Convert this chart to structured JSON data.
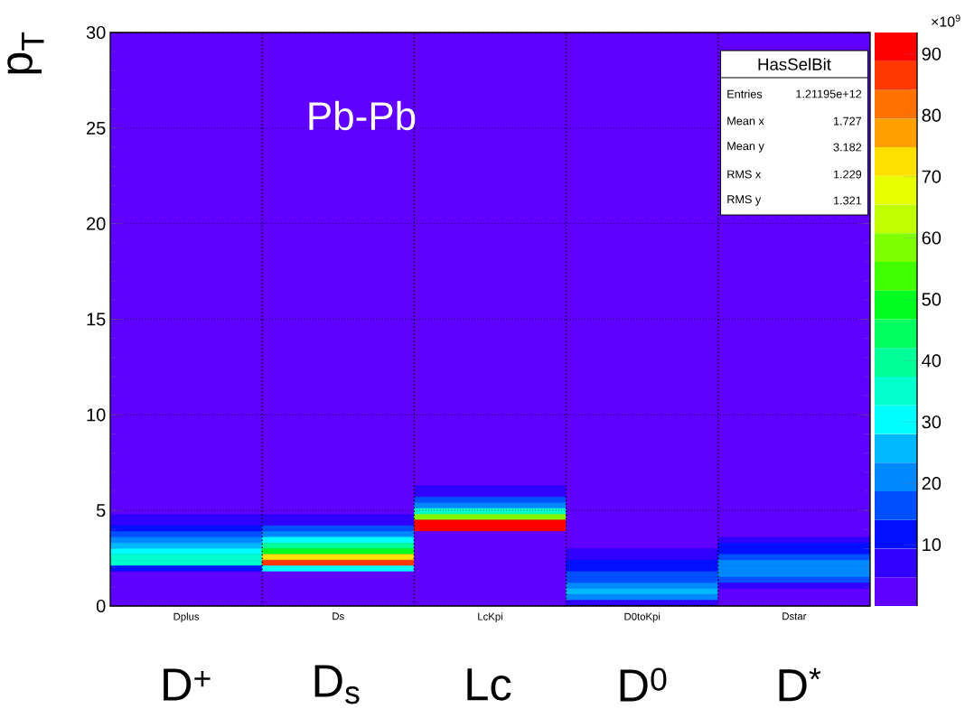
{
  "chart_data": {
    "type": "heatmap",
    "categories": [
      "Dplus",
      "Ds",
      "LcKpi",
      "D0toKpi",
      "Dstar"
    ],
    "ylabel": "p$_{T}$",
    "clabel": "×10$^{9}$",
    "ylim": [
      0,
      30
    ],
    "yticks": [
      0,
      5,
      10,
      15,
      20,
      25,
      30
    ],
    "clim": [
      0,
      93.5
    ],
    "cticks": [
      10,
      20,
      30,
      40,
      50,
      60,
      70,
      80,
      90
    ],
    "grid": true,
    "annotations": [
      "Pb-Pb",
      "HasSelBit",
      "Entries",
      "1.21195e+12",
      "Mean x",
      "1.727",
      "Mean y",
      "3.182",
      "RMS x",
      "1.229",
      "RMS y",
      "1.321",
      "D$^{+}$",
      "D$_{s}$",
      "Lc",
      "D$^{0}$",
      "D$^{*}$"
    ],
    "cells": [
      [
        0,
        0,
        0,
        0,
        0
      ],
      [
        0,
        0,
        0,
        0,
        0
      ],
      [
        0,
        0,
        0,
        0,
        0
      ],
      [
        0,
        0,
        0,
        0,
        null
      ],
      [
        0,
        0,
        0,
        0,
        null
      ],
      [
        0,
        0,
        0,
        0,
        null
      ],
      [
        0,
        0,
        0,
        0,
        null
      ],
      [
        0,
        0,
        0,
        0,
        null
      ],
      [
        0,
        0,
        0,
        0,
        null
      ],
      [
        0,
        0,
        0,
        0,
        null
      ],
      [
        0,
        0,
        0,
        0,
        null
      ],
      [
        0,
        0,
        0,
        0,
        null
      ],
      [
        0,
        0,
        0,
        0,
        null
      ],
      [
        0,
        0,
        0,
        0,
        null
      ],
      [
        0,
        0,
        0,
        0,
        null
      ],
      [
        0,
        0,
        0,
        0,
        null
      ],
      [
        0,
        0,
        0,
        0,
        null
      ],
      [
        0,
        0,
        0,
        0,
        null
      ],
      [
        0,
        0,
        0,
        0,
        null
      ],
      [
        0,
        0,
        0,
        0,
        null
      ],
      [
        0,
        0,
        0,
        0,
        null
      ],
      [
        0,
        0,
        0,
        0,
        null
      ],
      [
        0,
        0,
        0,
        0,
        null
      ],
      [
        0,
        0,
        0,
        0,
        null
      ],
      [
        0,
        0,
        0,
        0,
        null
      ],
      [
        0,
        0,
        0,
        0,
        null
      ],
      [
        0,
        0,
        0,
        0,
        null
      ],
      [
        0,
        0,
        0,
        0,
        null
      ],
      [
        0,
        0,
        0,
        0,
        null
      ],
      [
        0,
        0,
        0,
        0,
        null
      ],
      [
        0,
        0,
        0,
        0,
        null
      ],
      [
        0,
        0,
        0,
        0,
        null
      ],
      [
        0,
        0,
        0,
        0,
        0
      ],
      [
        0,
        0,
        0,
        0,
        0
      ],
      [
        0,
        0,
        0,
        0,
        0
      ],
      [
        0,
        0,
        0,
        0,
        0
      ],
      [
        0,
        0,
        0,
        0,
        0
      ],
      [
        0,
        0,
        0,
        0,
        0
      ],
      [
        0,
        0,
        0,
        0,
        0
      ],
      [
        0,
        0,
        0,
        0,
        0
      ],
      [
        0,
        0,
        0,
        0,
        0
      ],
      [
        0,
        0,
        0,
        0,
        0
      ],
      [
        0,
        0,
        0,
        0,
        0
      ],
      [
        0,
        0,
        0,
        0,
        0
      ],
      [
        0,
        0,
        0,
        0,
        0
      ],
      [
        0,
        0,
        0,
        0,
        0
      ],
      [
        0,
        0,
        0,
        0,
        0
      ],
      [
        0,
        0,
        0,
        0,
        0
      ],
      [
        0,
        0,
        0,
        0,
        0
      ],
      [
        0,
        0,
        0,
        0,
        0
      ],
      [
        0,
        0,
        0,
        0,
        0
      ],
      [
        0,
        0,
        0,
        0,
        0
      ],
      [
        0,
        0,
        0,
        0,
        0
      ],
      [
        0,
        0,
        0,
        0,
        0
      ],
      [
        0,
        0,
        0,
        0,
        0
      ],
      [
        0,
        0,
        0,
        0,
        0
      ],
      [
        0,
        0,
        0,
        0,
        0
      ],
      [
        0,
        0,
        0,
        0,
        0
      ],
      [
        0,
        0,
        0,
        0,
        0
      ],
      [
        0,
        0,
        0,
        0,
        0
      ],
      [
        0,
        0,
        0,
        0,
        0
      ],
      [
        0,
        0,
        0,
        0,
        0
      ],
      [
        0,
        0,
        0,
        0,
        0
      ],
      [
        0,
        0,
        0,
        0,
        0
      ],
      [
        0,
        0,
        0,
        0,
        0
      ],
      [
        0,
        0,
        0,
        0,
        0
      ],
      [
        0,
        0,
        0,
        0,
        0
      ],
      [
        0,
        0,
        0,
        0,
        0
      ],
      [
        0,
        0,
        0,
        0,
        0
      ],
      [
        0,
        0,
        0,
        0,
        0
      ],
      [
        0,
        0,
        0,
        0,
        0
      ],
      [
        0,
        0,
        0,
        0,
        0
      ],
      [
        0,
        0,
        0,
        0,
        0
      ],
      [
        0,
        0,
        0,
        0,
        0
      ],
      [
        0,
        0,
        0,
        0,
        0
      ],
      [
        0,
        0,
        0,
        0,
        0
      ],
      [
        0,
        0,
        0,
        0,
        0
      ],
      [
        0,
        0,
        0,
        0,
        0
      ],
      [
        0,
        0,
        0,
        0,
        0
      ],
      [
        0,
        0,
        7,
        0,
        0
      ],
      [
        0,
        0,
        7,
        0,
        0
      ],
      [
        0,
        0,
        16,
        0,
        0
      ],
      [
        0,
        0,
        21,
        0,
        0
      ],
      [
        0,
        0,
        35,
        0,
        0
      ],
      [
        7,
        7,
        58,
        0,
        0
      ],
      [
        7,
        7,
        91,
        0,
        0
      ],
      [
        12,
        16,
        91,
        0,
        0
      ],
      [
        16,
        21,
        0,
        0,
        0
      ],
      [
        21,
        30,
        0,
        0,
        7
      ],
      [
        26,
        40,
        0,
        0,
        12
      ],
      [
        31,
        50,
        0,
        7,
        12
      ],
      [
        35,
        72,
        0,
        7,
        16
      ],
      [
        35,
        87,
        0,
        12,
        21
      ],
      [
        12,
        30,
        0,
        12,
        21
      ],
      [
        0,
        0,
        0,
        16,
        21
      ],
      [
        0,
        0,
        0,
        16,
        16
      ],
      [
        0,
        0,
        0,
        21,
        7
      ],
      [
        0,
        0,
        0,
        26,
        0
      ],
      [
        0,
        0,
        0,
        21,
        0
      ],
      [
        0,
        0,
        0,
        7,
        0
      ]
    ]
  }
}
